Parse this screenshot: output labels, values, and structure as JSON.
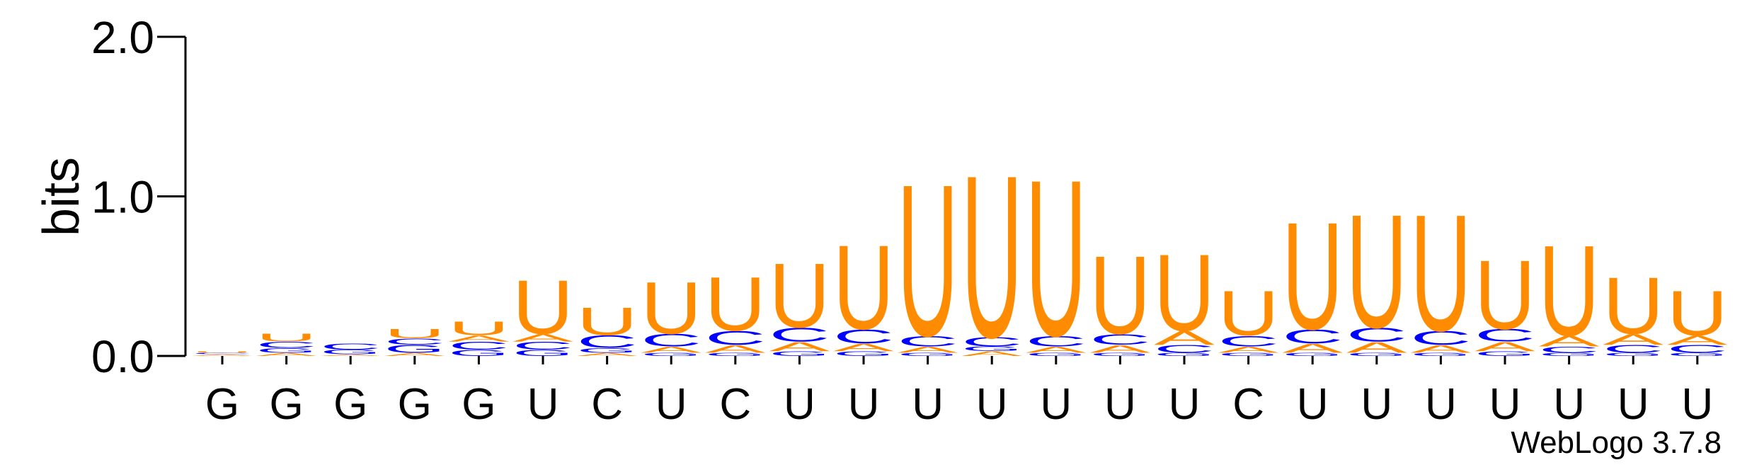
{
  "chart_data": {
    "type": "logo",
    "ylabel": "bits",
    "annotation": "WebLogo 3.7.8",
    "ylim": [
      0,
      2
    ],
    "yticks": [
      {
        "value": 0,
        "label": "0.0"
      },
      {
        "value": 1,
        "label": "1.0"
      },
      {
        "value": 2,
        "label": "2.0"
      }
    ],
    "colors": {
      "U": "#ff8c00",
      "A": "#ff8c00",
      "C": "#0000ff",
      "G": "#0000ff"
    },
    "categories": [
      "G",
      "G",
      "G",
      "G",
      "G",
      "U",
      "C",
      "U",
      "C",
      "U",
      "U",
      "U",
      "U",
      "U",
      "U",
      "U",
      "C",
      "U",
      "U",
      "U",
      "U",
      "U",
      "U",
      "U"
    ],
    "stacks": [
      [
        {
          "letter": "A",
          "bits": 0.01
        },
        {
          "letter": "C",
          "bits": 0.01
        },
        {
          "letter": "U",
          "bits": 0.01
        }
      ],
      [
        {
          "letter": "A",
          "bits": 0.02
        },
        {
          "letter": "G",
          "bits": 0.03
        },
        {
          "letter": "C",
          "bits": 0.04
        },
        {
          "letter": "U",
          "bits": 0.05
        }
      ],
      [
        {
          "letter": "A",
          "bits": 0.01
        },
        {
          "letter": "G",
          "bits": 0.03
        },
        {
          "letter": "C",
          "bits": 0.04
        }
      ],
      [
        {
          "letter": "A",
          "bits": 0.02
        },
        {
          "letter": "G",
          "bits": 0.05
        },
        {
          "letter": "C",
          "bits": 0.04
        },
        {
          "letter": "U",
          "bits": 0.06
        }
      ],
      [
        {
          "letter": "G",
          "bits": 0.04
        },
        {
          "letter": "C",
          "bits": 0.05
        },
        {
          "letter": "A",
          "bits": 0.04
        },
        {
          "letter": "U",
          "bits": 0.09
        }
      ],
      [
        {
          "letter": "G",
          "bits": 0.04
        },
        {
          "letter": "C",
          "bits": 0.05
        },
        {
          "letter": "A",
          "bits": 0.05
        },
        {
          "letter": "U",
          "bits": 0.35
        }
      ],
      [
        {
          "letter": "A",
          "bits": 0.02
        },
        {
          "letter": "G",
          "bits": 0.03
        },
        {
          "letter": "C",
          "bits": 0.08
        },
        {
          "letter": "U",
          "bits": 0.18
        }
      ],
      [
        {
          "letter": "G",
          "bits": 0.02
        },
        {
          "letter": "A",
          "bits": 0.04
        },
        {
          "letter": "C",
          "bits": 0.08
        },
        {
          "letter": "U",
          "bits": 0.34
        }
      ],
      [
        {
          "letter": "G",
          "bits": 0.02
        },
        {
          "letter": "A",
          "bits": 0.05
        },
        {
          "letter": "C",
          "bits": 0.09
        },
        {
          "letter": "U",
          "bits": 0.35
        }
      ],
      [
        {
          "letter": "G",
          "bits": 0.03
        },
        {
          "letter": "A",
          "bits": 0.06
        },
        {
          "letter": "C",
          "bits": 0.09
        },
        {
          "letter": "U",
          "bits": 0.42
        }
      ],
      [
        {
          "letter": "G",
          "bits": 0.03
        },
        {
          "letter": "A",
          "bits": 0.05
        },
        {
          "letter": "C",
          "bits": 0.09
        },
        {
          "letter": "U",
          "bits": 0.55
        }
      ],
      [
        {
          "letter": "G",
          "bits": 0.02
        },
        {
          "letter": "A",
          "bits": 0.04
        },
        {
          "letter": "C",
          "bits": 0.07
        },
        {
          "letter": "U",
          "bits": 0.99
        }
      ],
      [
        {
          "letter": "A",
          "bits": 0.03
        },
        {
          "letter": "G",
          "bits": 0.03
        },
        {
          "letter": "C",
          "bits": 0.06
        },
        {
          "letter": "U",
          "bits": 1.06
        }
      ],
      [
        {
          "letter": "G",
          "bits": 0.02
        },
        {
          "letter": "A",
          "bits": 0.04
        },
        {
          "letter": "C",
          "bits": 0.07
        },
        {
          "letter": "U",
          "bits": 1.02
        }
      ],
      [
        {
          "letter": "G",
          "bits": 0.02
        },
        {
          "letter": "A",
          "bits": 0.05
        },
        {
          "letter": "C",
          "bits": 0.07
        },
        {
          "letter": "U",
          "bits": 0.51
        }
      ],
      [
        {
          "letter": "G",
          "bits": 0.02
        },
        {
          "letter": "C",
          "bits": 0.05
        },
        {
          "letter": "A",
          "bits": 0.09
        },
        {
          "letter": "U",
          "bits": 0.5
        }
      ],
      [
        {
          "letter": "G",
          "bits": 0.02
        },
        {
          "letter": "A",
          "bits": 0.04
        },
        {
          "letter": "C",
          "bits": 0.07
        },
        {
          "letter": "U",
          "bits": 0.29
        }
      ],
      [
        {
          "letter": "G",
          "bits": 0.02
        },
        {
          "letter": "A",
          "bits": 0.06
        },
        {
          "letter": "C",
          "bits": 0.09
        },
        {
          "letter": "U",
          "bits": 0.7
        }
      ],
      [
        {
          "letter": "G",
          "bits": 0.02
        },
        {
          "letter": "A",
          "bits": 0.07
        },
        {
          "letter": "C",
          "bits": 0.09
        },
        {
          "letter": "U",
          "bits": 0.74
        }
      ],
      [
        {
          "letter": "G",
          "bits": 0.02
        },
        {
          "letter": "A",
          "bits": 0.05
        },
        {
          "letter": "C",
          "bits": 0.09
        },
        {
          "letter": "U",
          "bits": 0.76
        }
      ],
      [
        {
          "letter": "G",
          "bits": 0.03
        },
        {
          "letter": "A",
          "bits": 0.06
        },
        {
          "letter": "C",
          "bits": 0.08
        },
        {
          "letter": "U",
          "bits": 0.45
        }
      ],
      [
        {
          "letter": "G",
          "bits": 0.02
        },
        {
          "letter": "C",
          "bits": 0.04
        },
        {
          "letter": "A",
          "bits": 0.07
        },
        {
          "letter": "U",
          "bits": 0.59
        }
      ],
      [
        {
          "letter": "G",
          "bits": 0.02
        },
        {
          "letter": "C",
          "bits": 0.05
        },
        {
          "letter": "A",
          "bits": 0.07
        },
        {
          "letter": "U",
          "bits": 0.37
        }
      ],
      [
        {
          "letter": "G",
          "bits": 0.02
        },
        {
          "letter": "C",
          "bits": 0.05
        },
        {
          "letter": "A",
          "bits": 0.06
        },
        {
          "letter": "U",
          "bits": 0.29
        }
      ]
    ]
  }
}
